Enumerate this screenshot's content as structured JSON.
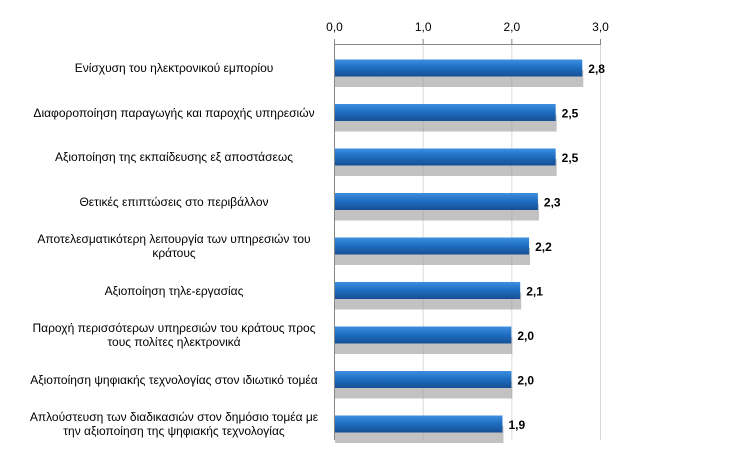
{
  "chart_data": {
    "type": "bar",
    "orientation": "horizontal",
    "categories": [
      "Ενίσχυση του ηλεκτρονικού εμπορίου",
      "Διαφοροποίηση παραγωγής και παροχής υπηρεσιών",
      "Αξιοποίηση της εκπαίδευσης εξ αποστάσεως",
      "Θετικές επιπτώσεις στο περιβάλλον",
      "Αποτελεσματικότερη λειτουργία των υπηρεσιών του κράτους",
      "Αξιοποίηση τηλε-εργασίας",
      "Παροχή περισσότερων υπηρεσιών του κράτους προς τους πολίτες ηλεκτρονικά",
      "Αξιοποίηση ψηφιακής τεχνολογίας στον ιδιωτικό τομέα",
      "Απλούστευση των διαδικασιών στον δημόσιο τομέα με την αξιοποίηση της ψηφιακής τεχνολογίας"
    ],
    "values": [
      2.8,
      2.5,
      2.5,
      2.3,
      2.2,
      2.1,
      2.0,
      2.0,
      1.9
    ],
    "value_labels": [
      "2,8",
      "2,5",
      "2,5",
      "2,3",
      "2,2",
      "2,1",
      "2,0",
      "2,0",
      "1,9"
    ],
    "xlim": [
      0,
      3
    ],
    "ticks": [
      0,
      1,
      2,
      3
    ],
    "tick_labels": [
      "0,0",
      "1,0",
      "2,0",
      "3,0"
    ],
    "axis_position": "top",
    "grid": true,
    "bar_color": "#1f6fc4"
  }
}
